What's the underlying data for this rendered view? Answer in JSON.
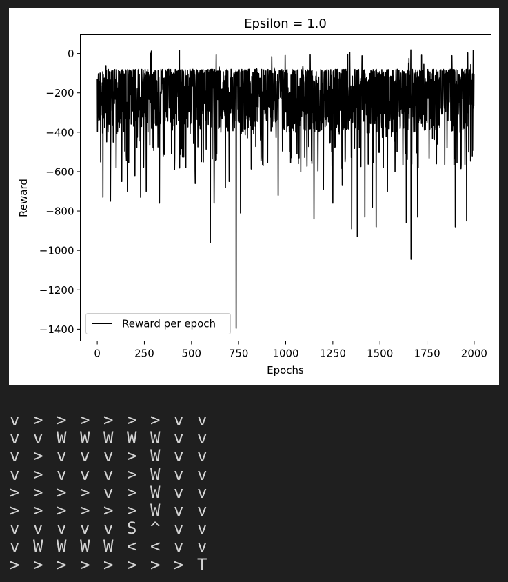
{
  "chart_data": {
    "type": "line",
    "title": "Epsilon = 1.0",
    "xlabel": "Epochs",
    "ylabel": "Reward",
    "xlim": [
      -90,
      2090
    ],
    "ylim": [
      -1460,
      95
    ],
    "x_ticks": [
      0,
      250,
      500,
      750,
      1000,
      1250,
      1500,
      1750,
      2000
    ],
    "x_tick_labels": [
      "0",
      "250",
      "500",
      "750",
      "1000",
      "1250",
      "1500",
      "1750",
      "2000"
    ],
    "y_ticks": [
      0,
      -200,
      -400,
      -600,
      -800,
      -1000,
      -1200,
      -1400
    ],
    "y_tick_labels": [
      "0",
      "−200",
      "−400",
      "−600",
      "−800",
      "−1000",
      "−1200",
      "−1400"
    ],
    "grid": false,
    "legend_position": "lower-left",
    "series": [
      {
        "name": "Reward per epoch",
        "color": "#000000",
        "n_points": 2000,
        "typical_range": [
          -400,
          -80
        ],
        "max_value": 20,
        "dips": [
          {
            "epoch": 30,
            "value": -730
          },
          {
            "epoch": 70,
            "value": -750
          },
          {
            "epoch": 100,
            "value": -580
          },
          {
            "epoch": 130,
            "value": -650
          },
          {
            "epoch": 160,
            "value": -700
          },
          {
            "epoch": 200,
            "value": -620
          },
          {
            "epoch": 230,
            "value": -730
          },
          {
            "epoch": 260,
            "value": -700
          },
          {
            "epoch": 330,
            "value": -760
          },
          {
            "epoch": 350,
            "value": -520
          },
          {
            "epoch": 410,
            "value": -590
          },
          {
            "epoch": 470,
            "value": -580
          },
          {
            "epoch": 520,
            "value": -660
          },
          {
            "epoch": 600,
            "value": -960
          },
          {
            "epoch": 620,
            "value": -760
          },
          {
            "epoch": 680,
            "value": -680
          },
          {
            "epoch": 700,
            "value": -650
          },
          {
            "epoch": 737,
            "value": -1395
          },
          {
            "epoch": 760,
            "value": -810
          },
          {
            "epoch": 880,
            "value": -570
          },
          {
            "epoch": 960,
            "value": -720
          },
          {
            "epoch": 1080,
            "value": -600
          },
          {
            "epoch": 1150,
            "value": -840
          },
          {
            "epoch": 1200,
            "value": -690
          },
          {
            "epoch": 1250,
            "value": -760
          },
          {
            "epoch": 1300,
            "value": -670
          },
          {
            "epoch": 1350,
            "value": -890
          },
          {
            "epoch": 1380,
            "value": -930
          },
          {
            "epoch": 1420,
            "value": -830
          },
          {
            "epoch": 1460,
            "value": -780
          },
          {
            "epoch": 1480,
            "value": -880
          },
          {
            "epoch": 1540,
            "value": -700
          },
          {
            "epoch": 1580,
            "value": -600
          },
          {
            "epoch": 1640,
            "value": -860
          },
          {
            "epoch": 1665,
            "value": -1045
          },
          {
            "epoch": 1700,
            "value": -830
          },
          {
            "epoch": 1800,
            "value": -560
          },
          {
            "epoch": 1900,
            "value": -880
          },
          {
            "epoch": 1960,
            "value": -850
          },
          {
            "epoch": 1990,
            "value": -520
          }
        ]
      }
    ]
  },
  "grid_output": {
    "rows": [
      [
        "v",
        ">",
        ">",
        ">",
        ">",
        ">",
        ">",
        "v",
        "v"
      ],
      [
        "v",
        "v",
        "W",
        "W",
        "W",
        "W",
        "W",
        "v",
        "v"
      ],
      [
        "v",
        ">",
        "v",
        "v",
        "v",
        ">",
        "W",
        "v",
        "v"
      ],
      [
        "v",
        ">",
        "v",
        "v",
        "v",
        ">",
        "W",
        "v",
        "v"
      ],
      [
        ">",
        ">",
        ">",
        ">",
        "v",
        ">",
        "W",
        "v",
        "v"
      ],
      [
        ">",
        ">",
        ">",
        ">",
        ">",
        ">",
        "W",
        "v",
        "v"
      ],
      [
        "v",
        "v",
        "v",
        "v",
        "v",
        "S",
        "^",
        "v",
        "v"
      ],
      [
        "v",
        "W",
        "W",
        "W",
        "W",
        "<",
        "<",
        "v",
        "v"
      ],
      [
        ">",
        ">",
        ">",
        ">",
        ">",
        ">",
        ">",
        ">",
        "T"
      ]
    ]
  }
}
